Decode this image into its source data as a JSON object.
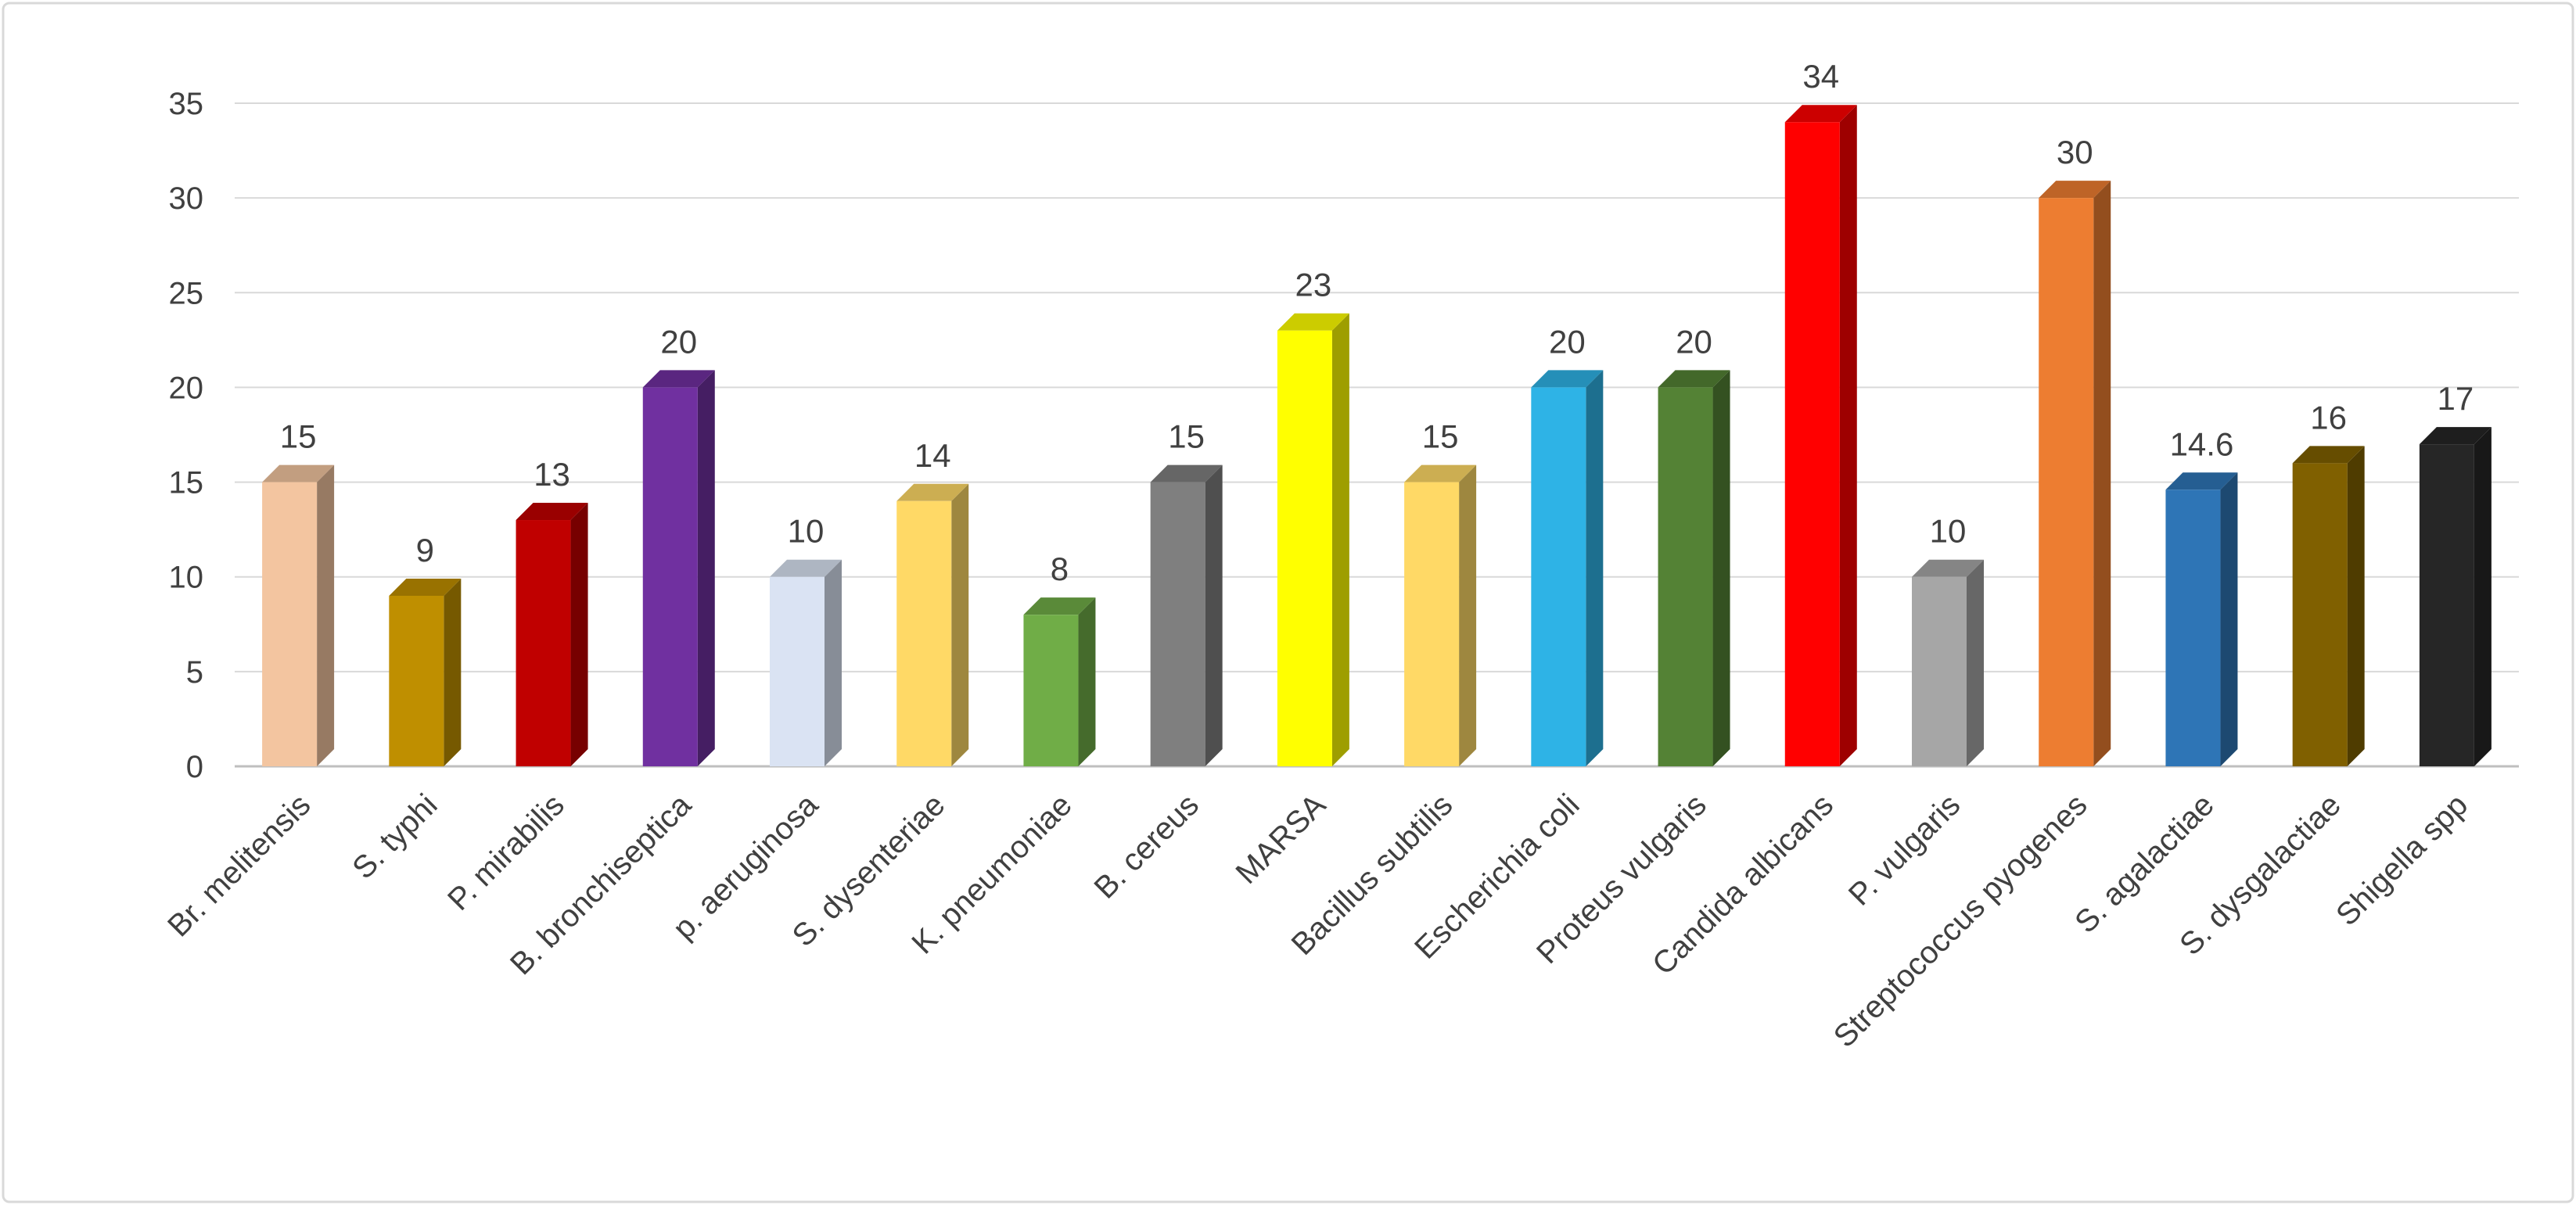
{
  "chart_data": {
    "type": "bar",
    "style": "3d-column",
    "title": "",
    "xlabel": "",
    "ylabel": "",
    "categories": [
      "Br. melitensis",
      "S. typhi",
      "P. mirabilis",
      "B. bronchiseptica",
      "p. aeruginosa",
      "S. dysenteriae",
      "K. pneumoniae",
      "B. cereus",
      "MARSA",
      "Bacillus subtilis",
      "Escherichia coli",
      "Proteus vulgaris",
      "Candida albicans",
      "P. vulgaris",
      "Streptococcus pyogenes",
      "S. agalactiae",
      "S. dysgalactiae",
      "Shigella spp"
    ],
    "values": [
      15,
      9,
      13,
      20,
      10,
      14,
      8,
      15,
      23,
      15,
      20,
      20,
      34,
      10,
      30,
      14.6,
      16,
      17
    ],
    "value_labels": [
      "15",
      "9",
      "13",
      "20",
      "10",
      "14",
      "8",
      "15",
      "23",
      "15",
      "20",
      "20",
      "34",
      "10",
      "30",
      "14.6",
      "16",
      "17"
    ],
    "colors": [
      "#f3c5a0",
      "#bf8f00",
      "#c00000",
      "#7030a0",
      "#dae3f3",
      "#ffd966",
      "#70ad47",
      "#7f7f7f",
      "#ffff00",
      "#ffd966",
      "#2eb3e6",
      "#548235",
      "#ff0000",
      "#a6a6a6",
      "#ed7d31",
      "#2e75b6",
      "#806000",
      "#262626"
    ],
    "ylim": [
      0,
      35
    ],
    "yticks": [
      0,
      5,
      10,
      15,
      20,
      25,
      30,
      35
    ],
    "grid": true,
    "legend": false,
    "axis_text_color": "#404040",
    "gridline_color": "#d9d9d9",
    "axis_line_color": "#bfbfbf",
    "border_color": "#d9d9d9",
    "background_color": "#ffffff"
  }
}
